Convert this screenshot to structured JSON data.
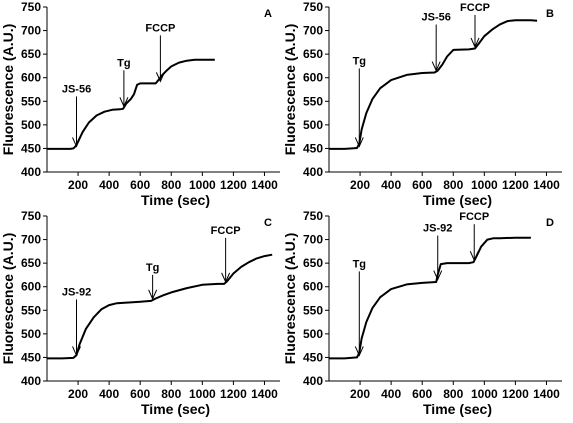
{
  "chart_data": [
    {
      "type": "line",
      "panel_label": "A",
      "xlabel": "Time (sec)",
      "ylabel": "Fluorescence (A.U.)",
      "xlim": [
        0,
        1500
      ],
      "ylim": [
        400,
        750
      ],
      "xticks": [
        200,
        400,
        600,
        800,
        1000,
        1200,
        1400
      ],
      "yticks": [
        400,
        450,
        500,
        550,
        600,
        650,
        700,
        750
      ],
      "grid": false,
      "x": [
        0,
        100,
        150,
        170,
        185,
        200,
        230,
        270,
        320,
        370,
        420,
        470,
        490,
        510,
        540,
        560,
        580,
        600,
        700,
        720,
        740,
        770,
        800,
        850,
        900,
        950,
        1000,
        1050,
        1080
      ],
      "y": [
        449,
        449,
        449,
        450,
        455,
        465,
        485,
        505,
        520,
        528,
        532,
        533,
        534,
        545,
        555,
        565,
        585,
        588,
        588,
        596,
        605,
        615,
        624,
        632,
        636,
        638,
        638,
        638,
        638
      ],
      "annotations": [
        {
          "label": "JS-56",
          "x": 190,
          "y": 450
        },
        {
          "label": "Tg",
          "x": 495,
          "y": 535
        },
        {
          "label": "FCCP",
          "x": 730,
          "y": 588
        }
      ]
    },
    {
      "type": "line",
      "panel_label": "B",
      "xlabel": "Time (sec)",
      "ylabel": "Fluorescence (A.U.)",
      "xlim": [
        0,
        1500
      ],
      "ylim": [
        400,
        750
      ],
      "xticks": [
        200,
        400,
        600,
        800,
        1000,
        1200,
        1400
      ],
      "yticks": [
        400,
        450,
        500,
        550,
        600,
        650,
        700,
        750
      ],
      "grid": false,
      "x": [
        0,
        100,
        150,
        180,
        195,
        210,
        240,
        280,
        330,
        400,
        500,
        600,
        680,
        700,
        730,
        760,
        800,
        900,
        940,
        970,
        1000,
        1050,
        1100,
        1150,
        1200,
        1250,
        1300,
        1340
      ],
      "y": [
        449,
        449,
        450,
        451,
        460,
        490,
        525,
        555,
        578,
        595,
        606,
        610,
        611,
        615,
        628,
        645,
        659,
        660,
        662,
        675,
        688,
        702,
        713,
        720,
        722,
        722,
        722,
        721
      ],
      "annotations": [
        {
          "label": "Tg",
          "x": 195,
          "y": 450
        },
        {
          "label": "JS-56",
          "x": 690,
          "y": 611
        },
        {
          "label": "FCCP",
          "x": 940,
          "y": 661
        }
      ]
    },
    {
      "type": "line",
      "panel_label": "C",
      "xlabel": "Time (sec)",
      "ylabel": "Fluorescence (A.U.)",
      "xlim": [
        0,
        1500
      ],
      "ylim": [
        400,
        750
      ],
      "xticks": [
        200,
        400,
        600,
        800,
        1000,
        1200,
        1400
      ],
      "yticks": [
        400,
        450,
        500,
        550,
        600,
        650,
        700,
        750
      ],
      "grid": false,
      "x": [
        0,
        100,
        170,
        190,
        210,
        250,
        300,
        350,
        400,
        450,
        500,
        600,
        670,
        700,
        750,
        800,
        900,
        1000,
        1100,
        1140,
        1160,
        1200,
        1250,
        1300,
        1350,
        1400,
        1450
      ],
      "y": [
        448,
        448,
        449,
        455,
        478,
        510,
        535,
        552,
        561,
        565,
        566,
        568,
        570,
        575,
        582,
        588,
        597,
        604,
        606,
        606,
        612,
        628,
        642,
        652,
        660,
        665,
        668
      ],
      "annotations": [
        {
          "label": "JS-92",
          "x": 190,
          "y": 450
        },
        {
          "label": "Tg",
          "x": 680,
          "y": 570
        },
        {
          "label": "FCCP",
          "x": 1150,
          "y": 606
        }
      ]
    },
    {
      "type": "line",
      "panel_label": "D",
      "xlabel": "Time (sec)",
      "ylabel": "Fluorescence (A.U.)",
      "xlim": [
        0,
        1500
      ],
      "ylim": [
        400,
        750
      ],
      "xticks": [
        200,
        400,
        600,
        800,
        1000,
        1200,
        1400
      ],
      "yticks": [
        400,
        450,
        500,
        550,
        600,
        650,
        700,
        750
      ],
      "grid": false,
      "x": [
        0,
        100,
        180,
        195,
        210,
        240,
        280,
        330,
        400,
        500,
        600,
        690,
        700,
        720,
        760,
        800,
        900,
        930,
        950,
        980,
        1020,
        1060,
        1100,
        1200,
        1300
      ],
      "y": [
        448,
        448,
        450,
        460,
        490,
        525,
        555,
        578,
        595,
        605,
        608,
        610,
        625,
        648,
        650,
        650,
        650,
        652,
        665,
        685,
        700,
        703,
        703,
        704,
        704
      ],
      "annotations": [
        {
          "label": "Tg",
          "x": 195,
          "y": 450
        },
        {
          "label": "JS-92",
          "x": 700,
          "y": 611
        },
        {
          "label": "FCCP",
          "x": 935,
          "y": 652
        }
      ]
    }
  ]
}
